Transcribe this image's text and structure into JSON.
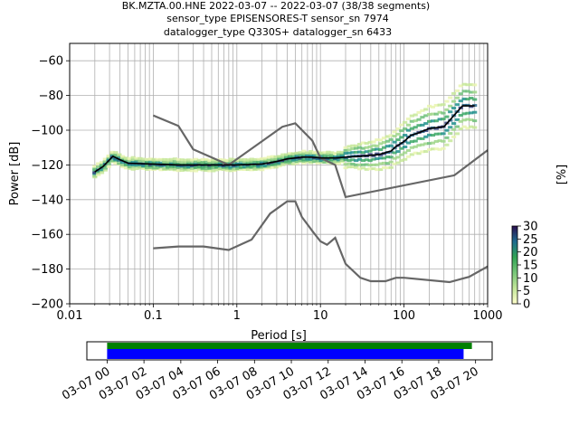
{
  "title": {
    "line1": "BK.MZTA.00.HNE   2022-03-07 -- 2022-03-07  (38/38 segments)",
    "line2": "sensor_type EPISENSORES-T sensor_sn 7974",
    "line3": "datalogger_type Q330S+ datalogger_sn 6433"
  },
  "chart_data": {
    "type": "line",
    "xlabel": "Period [s]",
    "ylabel": "Power [dB]",
    "xscale": "log",
    "xlim": [
      0.01,
      1000
    ],
    "ylim": [
      -200,
      -50
    ],
    "grid": true,
    "x_ticks": [
      "0.01",
      "0.1",
      "1",
      "10",
      "100",
      "1000"
    ],
    "y_ticks": [
      "−60",
      "−80",
      "−100",
      "−120",
      "−140",
      "−160",
      "−180",
      "−200"
    ],
    "series": [
      {
        "line_style": "gray",
        "x": [
          0.1,
          0.2,
          0.3,
          0.8,
          3.5,
          5,
          8,
          10,
          15,
          20,
          400,
          1000
        ],
        "y": [
          -91.5,
          -97.5,
          -111,
          -120,
          -98,
          -96,
          -106,
          -116,
          -120,
          -138.5,
          -126,
          -111.5
        ]
      },
      {
        "line_style": "gray",
        "x": [
          0.1,
          0.2,
          0.4,
          0.8,
          1.5,
          2.5,
          4,
          5,
          6,
          8,
          10,
          12,
          15,
          20,
          30,
          40,
          60,
          80,
          100,
          350,
          600,
          1000
        ],
        "y": [
          -168,
          -167,
          -167,
          -169,
          -163,
          -148,
          -141,
          -141,
          -150,
          -158,
          -164,
          -166,
          -162,
          -177,
          -185,
          -187,
          -187,
          -185,
          -185,
          -187.5,
          -184.5,
          -178.5
        ]
      },
      {
        "line_style": "mode",
        "x": [
          0.02,
          0.025,
          0.033,
          0.04,
          0.05,
          0.1,
          0.2,
          0.5,
          1,
          2,
          3,
          4,
          5,
          6,
          8,
          10,
          15,
          20,
          30,
          50,
          70,
          80,
          100,
          120,
          150,
          200,
          300,
          500,
          700
        ],
        "y": [
          -124,
          -121,
          -115,
          -117,
          -119,
          -119.5,
          -120,
          -120,
          -120,
          -119.5,
          -118,
          -116.5,
          -116,
          -115.5,
          -115.5,
          -116,
          -116,
          -115.5,
          -115,
          -114,
          -112,
          -109.5,
          -106.5,
          -103,
          -101.5,
          -99,
          -98,
          -86,
          -86
        ]
      }
    ],
    "colorbar": {
      "label": "[%]",
      "ticks": [
        "0",
        "5",
        "10",
        "15",
        "20",
        "25",
        "30"
      ],
      "range": [
        0,
        30
      ]
    },
    "timeline": {
      "tick_labels": [
        "03-07 00",
        "03-07 02",
        "03-07 04",
        "03-07 06",
        "03-07 08",
        "03-07 10",
        "03-07 12",
        "03-07 14",
        "03-07 16",
        "03-07 18",
        "03-07 20"
      ],
      "start_hour": -1.1,
      "end_hour": 20.9,
      "bars": [
        {
          "color": "#008000",
          "start_hour": 0,
          "end_hour": 19.8
        },
        {
          "color": "#0000ff",
          "start_hour": 0,
          "end_hour": 19.35
        }
      ]
    }
  }
}
